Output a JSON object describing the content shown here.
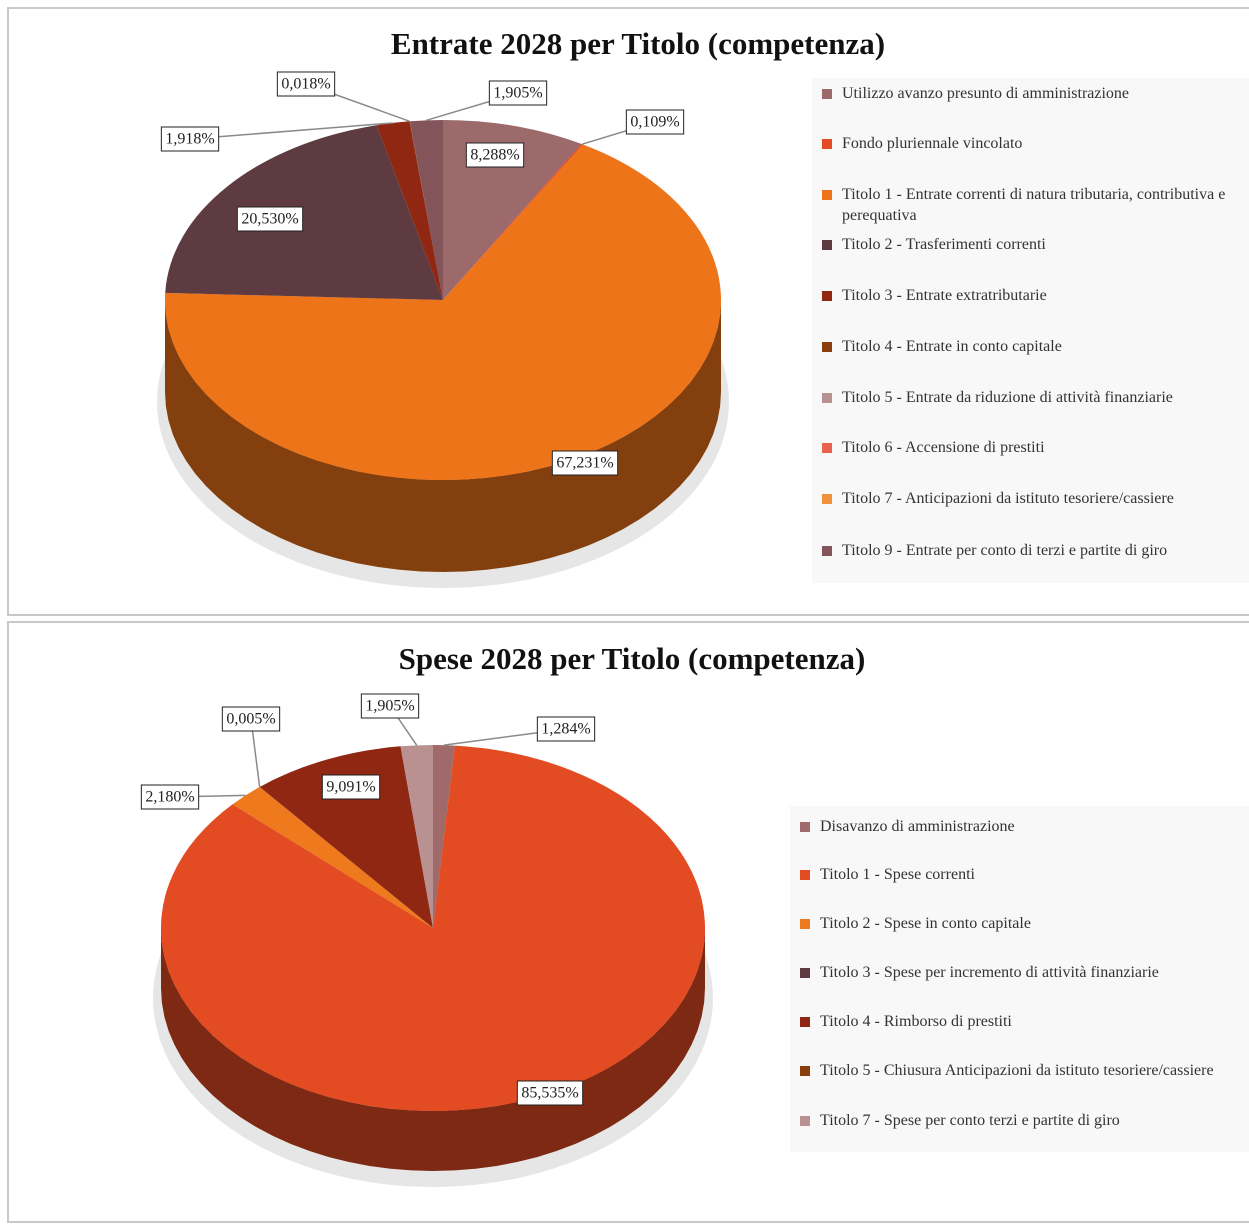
{
  "chart_data": [
    {
      "type": "pie",
      "title": "Entrate 2028 per Titolo (competenza)",
      "categories": [
        "Utilizzo avanzo presunto di amministrazione",
        "Fondo pluriennale vincolato",
        "Titolo 1 - Entrate correnti di natura tributaria, contributiva e perequativa",
        "Titolo 2 - Trasferimenti correnti",
        "Titolo 3 - Entrate extratributarie",
        "Titolo 4 - Entrate in conto capitale",
        "Titolo 5 - Entrate da riduzione di attività finanziarie",
        "Titolo 6 - Accensione di prestiti",
        "Titolo 7 - Anticipazioni da istituto tesoriere/cassiere",
        "Titolo 9 - Entrate per conto di terzi e partite di giro"
      ],
      "values": [
        8.288,
        0.109,
        67.231,
        20.53,
        1.918,
        0.018,
        0,
        0,
        0,
        1.905
      ],
      "value_labels": [
        "8,288%",
        "0,109%",
        "67,231%",
        "20,530%",
        "1,918%",
        "0,018%",
        null,
        null,
        null,
        "1,905%"
      ],
      "colors": [
        "#9c6a6a",
        "#e04a25",
        "#ee7419",
        "#5d3b40",
        "#8f2713",
        "#8a3e0e",
        "#b89191",
        "#e8624c",
        "#f0923c",
        "#84545b"
      ]
    },
    {
      "type": "pie",
      "title": "Spese 2028 per Titolo (competenza)",
      "categories": [
        "Disavanzo di amministrazione",
        "Titolo 1 - Spese correnti",
        "Titolo 2 - Spese in conto capitale",
        "Titolo 3 - Spese per incremento di attività finanziarie",
        "Titolo 4 - Rimborso di prestiti",
        "Titolo 5 - Chiusura Anticipazioni da istituto tesoriere/cassiere",
        "Titolo 7 - Spese per conto terzi e partite di giro"
      ],
      "values": [
        1.284,
        85.535,
        2.18,
        0.005,
        9.091,
        0,
        1.905
      ],
      "value_labels": [
        "1,284%",
        "85,535%",
        "2,180%",
        "0,005%",
        "9,091%",
        null,
        "1,905%"
      ],
      "colors": [
        "#a06a6a",
        "#e34b23",
        "#ef7a1d",
        "#5d3b40",
        "#8f2713",
        "#8a3e0e",
        "#b99191"
      ]
    }
  ]
}
